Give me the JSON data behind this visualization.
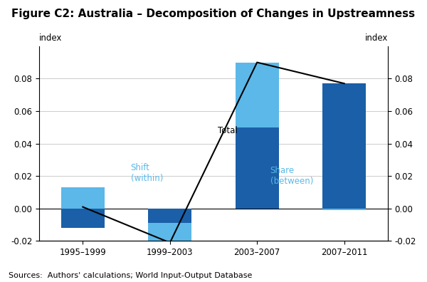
{
  "title": "Figure C2: Australia – Decomposition of Changes in Upstreamness",
  "categories": [
    "1995–1999",
    "1999–2003",
    "2003–2007",
    "2007–2011"
  ],
  "share_between": [
    -0.012,
    -0.009,
    0.05,
    0.077
  ],
  "shift_within": [
    0.013,
    -0.013,
    0.04,
    -0.001
  ],
  "total_line": [
    0.001,
    -0.021,
    0.09,
    0.077
  ],
  "color_dark_blue": "#1a5fa8",
  "color_light_blue": "#5bb8e8",
  "color_line": "#000000",
  "ylabel_left": "index",
  "ylabel_right": "index",
  "ylim": [
    -0.02,
    0.1
  ],
  "yticks": [
    -0.02,
    0.0,
    0.02,
    0.04,
    0.06,
    0.08
  ],
  "sources_text": "Sources:  Authors' calculations; World Input-Output Database",
  "label_share": "Share\n(between)",
  "label_shift": "Shift\n(within)",
  "label_total": "Total",
  "title_fontsize": 11,
  "axis_fontsize": 8.5,
  "tick_fontsize": 8.5,
  "annotation_fontsize": 8.5,
  "sources_fontsize": 8,
  "background_color": "#ffffff",
  "bar_width": 0.5
}
